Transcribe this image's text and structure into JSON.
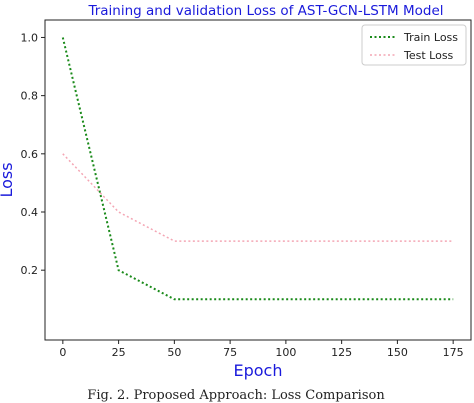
{
  "chart_data": {
    "type": "line",
    "title": "Training and validation Loss of AST-GCN-LSTM Model",
    "xlabel": "Epoch",
    "ylabel": "Loss",
    "xlim": [
      -8,
      183
    ],
    "ylim": [
      -0.04,
      1.06
    ],
    "xticks": [
      "0",
      "25",
      "50",
      "75",
      "100",
      "125",
      "150",
      "175"
    ],
    "yticks": [
      "0.2",
      "0.4",
      "0.6",
      "0.8",
      "1.0"
    ],
    "legend_position": "top-right",
    "grid": false,
    "series": [
      {
        "name": "Train Loss",
        "color": "#1a8a1a",
        "style": "dotted",
        "x": [
          0,
          25,
          50,
          175
        ],
        "y": [
          1.0,
          0.2,
          0.1,
          0.1
        ]
      },
      {
        "name": "Test Loss",
        "color": "#f4a6b4",
        "style": "dotted",
        "x": [
          0,
          25,
          50,
          175
        ],
        "y": [
          0.6,
          0.4,
          0.3,
          0.3
        ]
      }
    ]
  },
  "caption": "Fig. 2.   Proposed Approach: Loss Comparison"
}
